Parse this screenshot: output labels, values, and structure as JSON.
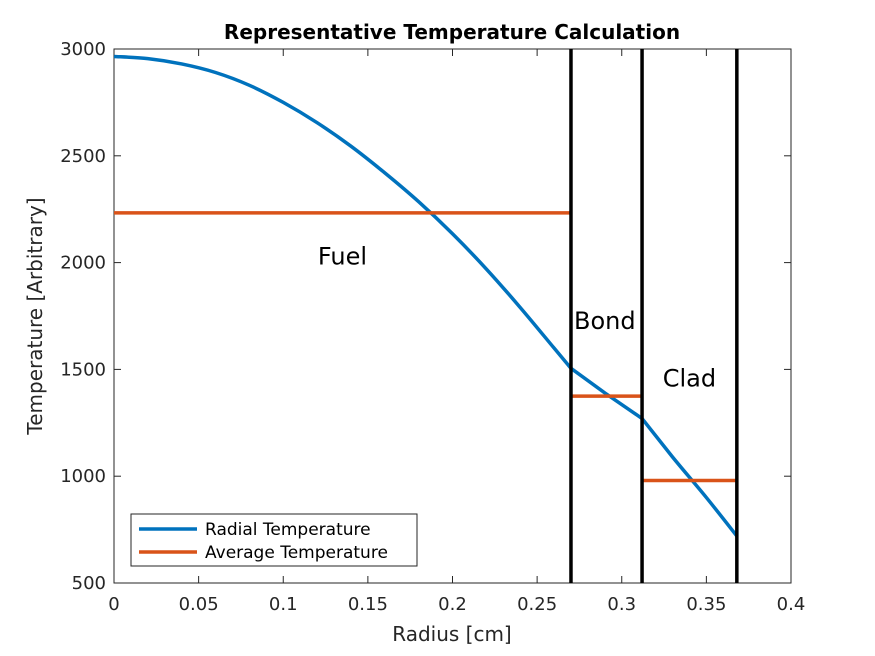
{
  "chart_data": {
    "type": "line",
    "title": "Representative Temperature Calculation",
    "xlabel": "Radius [cm]",
    "ylabel": "Temperature [Arbitrary]",
    "xlim": [
      0,
      0.4
    ],
    "ylim": [
      500,
      3000
    ],
    "xticks": [
      "0",
      "0.05",
      "0.1",
      "0.15",
      "0.2",
      "0.25",
      "0.3",
      "0.35",
      "0.4"
    ],
    "yticks": [
      "500",
      "1000",
      "1500",
      "2000",
      "2500",
      "3000"
    ],
    "grid": false,
    "legend_position": "bottom-left",
    "colors": {
      "radial": "#0072BD",
      "average": "#D95319",
      "boundary": "#000000"
    },
    "series": [
      {
        "name": "Radial Temperature",
        "x": [
          0,
          0.02,
          0.04,
          0.06,
          0.08,
          0.1,
          0.12,
          0.14,
          0.16,
          0.18,
          0.2,
          0.22,
          0.24,
          0.26,
          0.27,
          0.29,
          0.312,
          0.33,
          0.35,
          0.368
        ],
        "y": [
          2965,
          2955,
          2930,
          2890,
          2830,
          2750,
          2655,
          2545,
          2420,
          2285,
          2135,
          1970,
          1790,
          1600,
          1505,
          1390,
          1270,
          1090,
          900,
          720
        ]
      },
      {
        "name": "Average Temperature",
        "segments": [
          {
            "x": [
              0,
              0.27
            ],
            "y": [
              2233,
              2233
            ]
          },
          {
            "x": [
              0.27,
              0.312
            ],
            "y": [
              1375,
              1375
            ]
          },
          {
            "x": [
              0.312,
              0.368
            ],
            "y": [
              980,
              980
            ]
          }
        ]
      }
    ],
    "boundaries": [
      0.27,
      0.312,
      0.368
    ],
    "annotations": [
      {
        "text": "Fuel",
        "x": 0.135,
        "y": 1990
      },
      {
        "text": "Bond",
        "x": 0.29,
        "y": 1690
      },
      {
        "text": "Clad",
        "x": 0.34,
        "y": 1420
      }
    ]
  }
}
